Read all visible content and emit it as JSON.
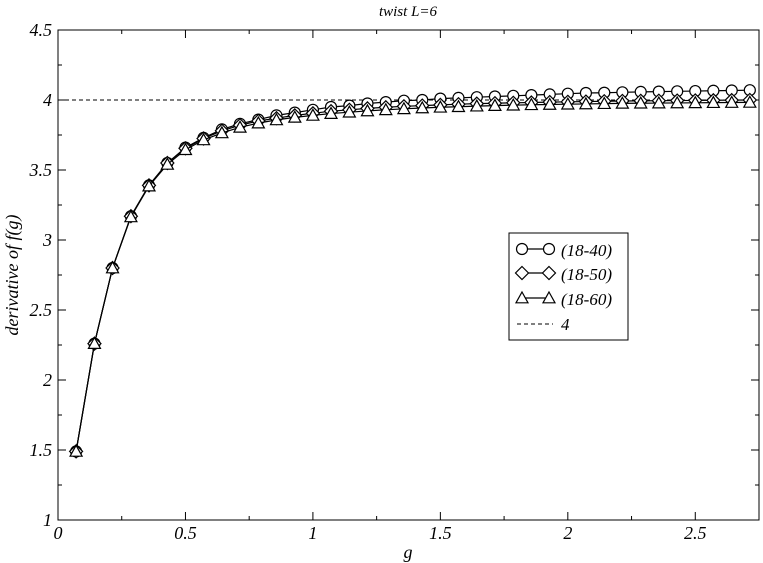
{
  "chart_data": {
    "type": "line",
    "title": "twist L=6",
    "xlabel": "g",
    "ylabel": "derivative of f(g)",
    "xlim": [
      0,
      2.75
    ],
    "ylim": [
      1,
      4.5
    ],
    "x_ticks": [
      "0",
      "0.5",
      "1",
      "1.5",
      "2",
      "2.5"
    ],
    "y_ticks": [
      "1",
      "1.5",
      "2",
      "2.5",
      "3",
      "3.5",
      "4",
      "4.5"
    ],
    "x_tick_values": [
      0,
      0.5,
      1,
      1.5,
      2,
      2.5
    ],
    "y_tick_values": [
      1,
      1.5,
      2,
      2.5,
      3,
      3.5,
      4,
      4.5
    ],
    "grid": false,
    "legend_position": "right",
    "x": [
      0.071,
      0.143,
      0.214,
      0.286,
      0.357,
      0.429,
      0.5,
      0.571,
      0.643,
      0.714,
      0.786,
      0.857,
      0.929,
      1.0,
      1.071,
      1.143,
      1.214,
      1.286,
      1.357,
      1.429,
      1.5,
      1.571,
      1.643,
      1.714,
      1.786,
      1.857,
      1.929,
      2.0,
      2.071,
      2.143,
      2.214,
      2.286,
      2.357,
      2.429,
      2.5,
      2.571,
      2.643,
      2.714
    ],
    "series": [
      {
        "name": "(18-40)",
        "marker": "circle",
        "values": [
          1.49,
          2.26,
          2.8,
          3.17,
          3.39,
          3.55,
          3.66,
          3.73,
          3.79,
          3.83,
          3.86,
          3.89,
          3.91,
          3.93,
          3.95,
          3.96,
          3.975,
          3.985,
          3.995,
          4.0,
          4.01,
          4.015,
          4.02,
          4.025,
          4.03,
          4.035,
          4.04,
          4.045,
          4.05,
          4.052,
          4.055,
          4.058,
          4.06,
          4.062,
          4.064,
          4.066,
          4.068,
          4.07
        ]
      },
      {
        "name": "(18-50)",
        "marker": "diamond",
        "values": [
          1.49,
          2.26,
          2.8,
          3.17,
          3.39,
          3.55,
          3.655,
          3.725,
          3.78,
          3.82,
          3.85,
          3.87,
          3.89,
          3.905,
          3.92,
          3.93,
          3.94,
          3.948,
          3.955,
          3.96,
          3.965,
          3.97,
          3.974,
          3.977,
          3.98,
          3.982,
          3.985,
          3.987,
          3.989,
          3.991,
          3.993,
          3.994,
          3.995,
          3.996,
          3.997,
          3.998,
          3.999,
          4.0
        ]
      },
      {
        "name": "(18-60)",
        "marker": "triangle",
        "values": [
          1.49,
          2.26,
          2.8,
          3.165,
          3.385,
          3.54,
          3.645,
          3.715,
          3.765,
          3.805,
          3.835,
          3.858,
          3.876,
          3.89,
          3.903,
          3.913,
          3.922,
          3.93,
          3.937,
          3.943,
          3.948,
          3.952,
          3.956,
          3.96,
          3.963,
          3.966,
          3.968,
          3.97,
          3.972,
          3.974,
          3.976,
          3.977,
          3.978,
          3.979,
          3.98,
          3.981,
          3.982,
          3.983
        ]
      }
    ],
    "reference_line": {
      "name": "4",
      "y": 4,
      "style": "dashed"
    }
  }
}
